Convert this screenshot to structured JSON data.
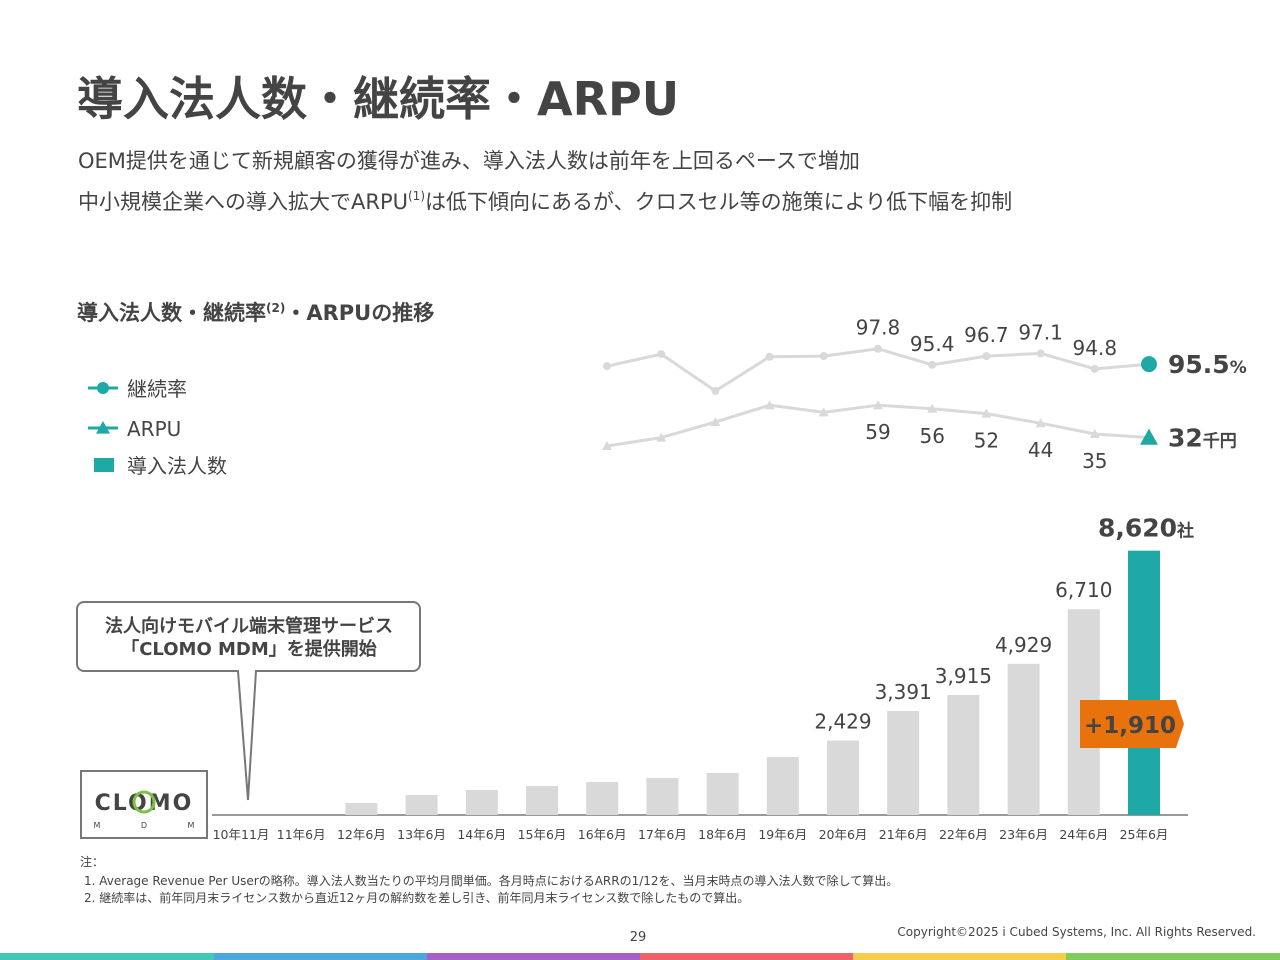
{
  "header": {
    "title": "導入法人数・継続率・ARPU",
    "line1": "OEM提供を通じて新規顧客の獲得が進み、導入法人数は前年を上回るペースで増加",
    "line2_a": "中小規模企業への導入拡大でARPU",
    "line2_sup": "(1)",
    "line2_b": "は低下傾向にあるが、クロスセル等の施策により低下幅を抑制"
  },
  "chart_title": {
    "a": "導入法人数・継続率",
    "sup": "(2)",
    "b": "・ARPUの推移"
  },
  "callout": {
    "line1": "法人向けモバイル端末管理サービス",
    "line2": "「CLOMO MDM」を提供開始"
  },
  "logo": {
    "word": "CLOMO",
    "m1": "M",
    "d": "D",
    "m2": "M"
  },
  "chart_data": [
    {
      "type": "bar",
      "name": "導入法人数",
      "categories": [
        "10年11月",
        "11年6月",
        "12年6月",
        "13年6月",
        "14年6月",
        "15年6月",
        "16年6月",
        "17年6月",
        "18年6月",
        "19年6月",
        "20年6月",
        "21年6月",
        "22年6月",
        "23年6月",
        "24年6月",
        "25年6月"
      ],
      "values": [
        0,
        0,
        390,
        650,
        815,
        945,
        1075,
        1205,
        1370,
        1890,
        2429,
        3391,
        3915,
        4929,
        6710,
        8620
      ],
      "value_labels": [
        null,
        null,
        null,
        null,
        null,
        null,
        null,
        null,
        null,
        null,
        "2,429",
        "3,391",
        "3,915",
        "4,929",
        "6,710",
        "8,620"
      ],
      "unit": "社",
      "color": "#d9d9d9",
      "highlight_color": "#1ea9a6",
      "ylim": [
        0,
        9000
      ],
      "annotation": "+1,910",
      "annotation_color": "#e8730c"
    },
    {
      "type": "line",
      "name": "継続率",
      "marker": "circle",
      "values": [
        95.2,
        97.0,
        91.5,
        96.6,
        96.7,
        97.8,
        95.4,
        96.7,
        97.1,
        94.8,
        95.5
      ],
      "value_labels": [
        null,
        null,
        null,
        null,
        null,
        "97.8",
        "95.4",
        "96.7",
        "97.1",
        "94.8",
        "95.5"
      ],
      "unit": "%",
      "color": "#d9d9d9",
      "marker_color": "#1ea9a6",
      "ylim": [
        90,
        100
      ]
    },
    {
      "type": "line",
      "name": "ARPU",
      "marker": "triangle",
      "values": [
        25,
        32,
        45,
        59,
        53,
        59,
        56,
        52,
        44,
        35,
        32
      ],
      "value_labels": [
        null,
        null,
        null,
        null,
        null,
        "59",
        "56",
        "52",
        "44",
        "35",
        "32"
      ],
      "unit": "千円",
      "color": "#d9d9d9",
      "marker_color": "#1ea9a6",
      "ylim": [
        20,
        70
      ]
    }
  ],
  "notes": {
    "head": "注：",
    "n1": "1. Average Revenue Per Userの略称。導入法人数当たりの平均月間単価。各月時点におけるARRの1/12を、当月末時点の導入法人数で除して算出。",
    "n2": "2. 継続率は、前年同月末ライセンス数から直近12ヶ月の解約数を差し引き、前年同月末ライセンス数で除したもので算出。"
  },
  "footer": {
    "page": "29",
    "copyright": "Copyright©2025 i Cubed Systems, Inc. All Rights Reserved."
  }
}
